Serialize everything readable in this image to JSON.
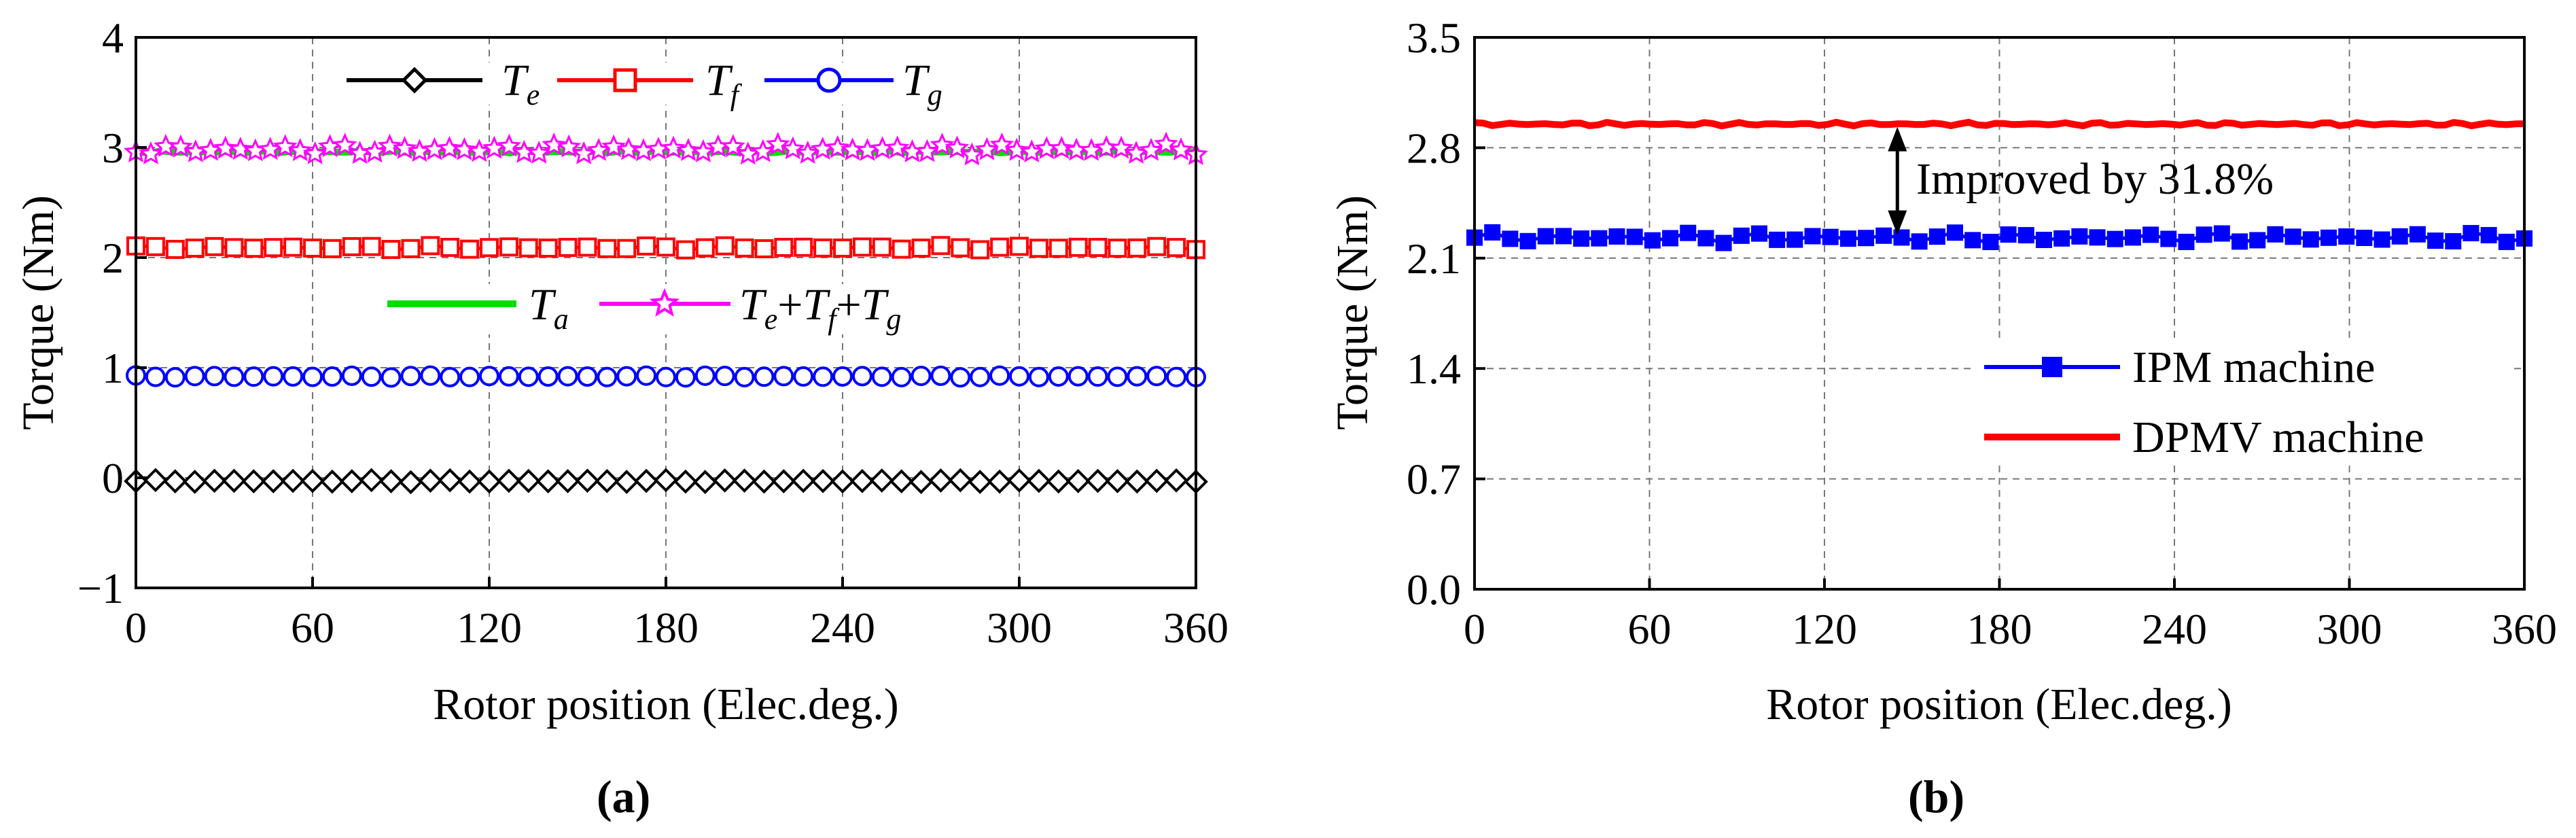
{
  "chart_data": [
    {
      "panel_label": "(a)",
      "type": "line",
      "xlabel": "Rotor position (Elec.deg.)",
      "ylabel": "Torque (Nm)",
      "xlim": [
        0,
        360
      ],
      "ylim": [
        -1,
        4
      ],
      "xticks": [
        "0",
        "60",
        "120",
        "180",
        "240",
        "300",
        "360"
      ],
      "yticks": [
        "−1",
        "0",
        "1",
        "2",
        "3",
        "4"
      ],
      "grid": true,
      "series": [
        {
          "id": "Te",
          "name": "T_e",
          "symbol": "T",
          "subscript": "e",
          "color": "#000000",
          "marker": "diamond",
          "mean": -0.03,
          "ripple": 0.01,
          "points": 55
        },
        {
          "id": "Tf",
          "name": "T_f",
          "symbol": "T",
          "subscript": "f",
          "color": "#ff0000",
          "marker": "square",
          "mean": 2.09,
          "ripple": 0.02,
          "points": 55
        },
        {
          "id": "Tg",
          "name": "T_g",
          "symbol": "T",
          "subscript": "g",
          "color": "#0000ff",
          "marker": "circle",
          "mean": 0.92,
          "ripple": 0.01,
          "points": 55
        },
        {
          "id": "Ta",
          "name": "T_a",
          "symbol": "T",
          "subscript": "a",
          "color": "#00dd00",
          "marker": "none",
          "mean": 2.96,
          "ripple": 0.01,
          "points": 120
        },
        {
          "id": "Tsum",
          "name": "T_e+T_f+T_g",
          "symbol": "T",
          "subscript": "e+f+g",
          "color": "#ff00ff",
          "marker": "star",
          "mean": 2.98,
          "ripple": 0.05,
          "points": 72
        }
      ],
      "legend_location": "top-center"
    },
    {
      "panel_label": "(b)",
      "type": "line",
      "xlabel": "Rotor position (Elec.deg.)",
      "ylabel": "Torque (Nm)",
      "xlim": [
        0,
        360
      ],
      "ylim": [
        0.0,
        3.5
      ],
      "xticks": [
        "0",
        "60",
        "120",
        "180",
        "240",
        "300",
        "360"
      ],
      "yticks": [
        "0.0",
        "0.7",
        "1.4",
        "2.1",
        "2.8",
        "3.5"
      ],
      "grid": true,
      "series": [
        {
          "id": "IPM",
          "name": "IPM machine",
          "color": "#0000ff",
          "marker": "square",
          "mean": 2.23,
          "ripple": 0.035,
          "points": 60
        },
        {
          "id": "DPMV",
          "name": "DPMV machine",
          "color": "#ff0000",
          "marker": "none",
          "mean": 2.95,
          "ripple": 0.012,
          "points": 120
        }
      ],
      "annotation": {
        "text": "Improved by 31.8%",
        "x": 145,
        "y_from": 2.23,
        "y_to": 2.95
      },
      "legend_location": "center-right"
    }
  ]
}
